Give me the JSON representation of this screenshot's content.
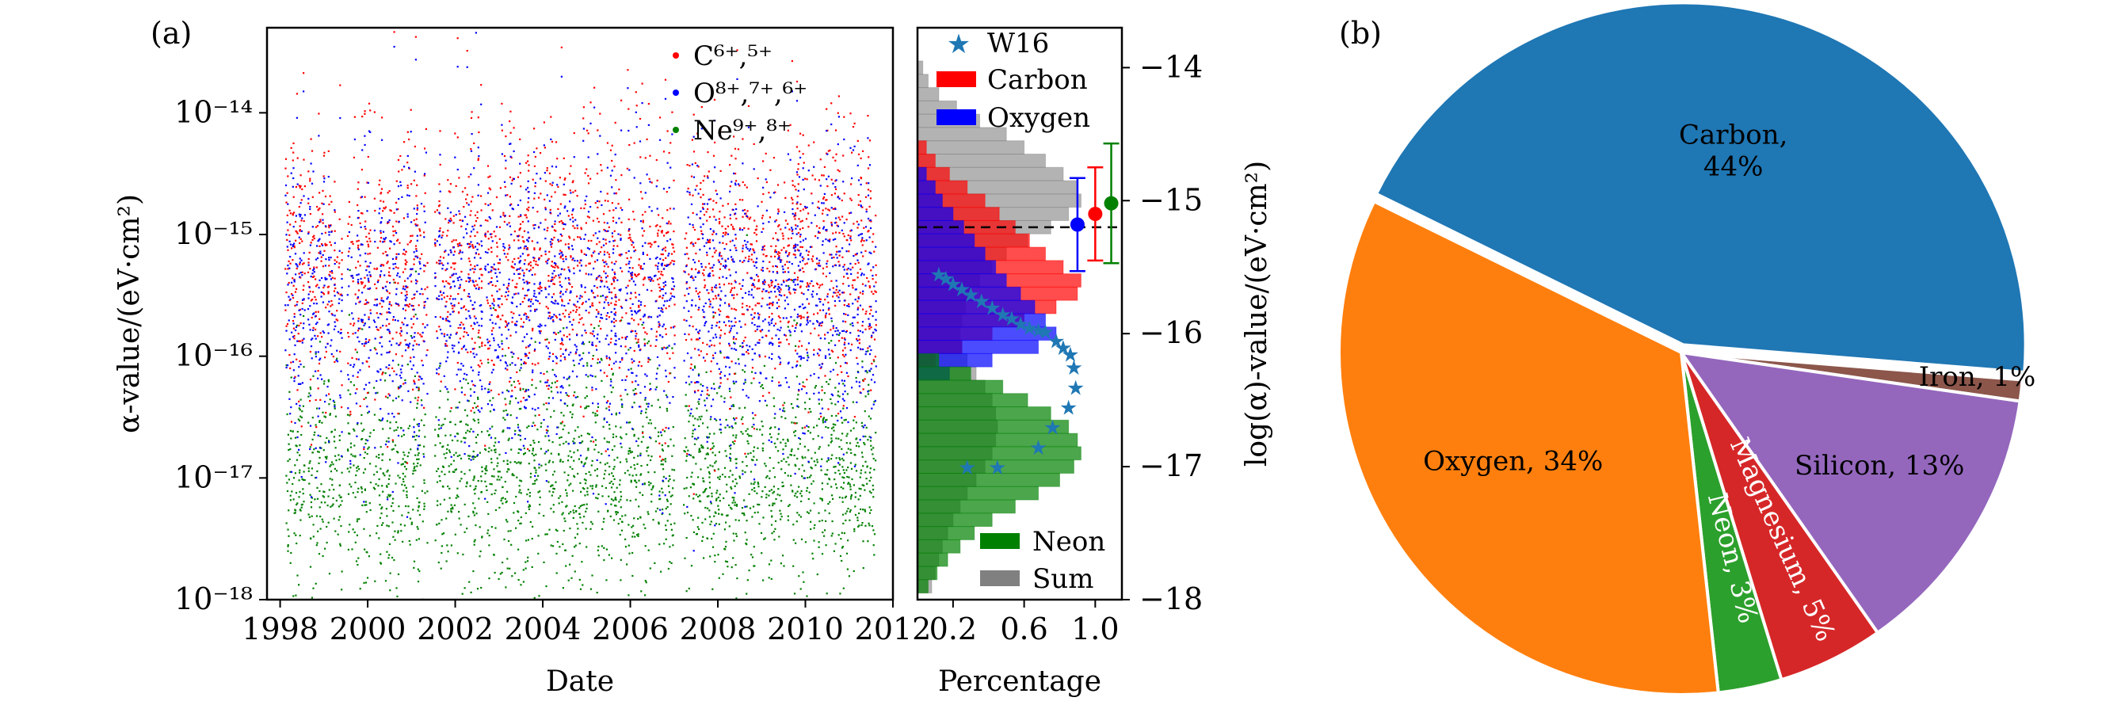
{
  "panel_a_label": "(a)",
  "panel_b_label": "(b)",
  "chart_data": [
    {
      "type": "scatter",
      "panel": "(a) left",
      "xlabel": "Date",
      "ylabel": "α-value/(eV·cm²)",
      "xlim": [
        1997.7,
        2012.0
      ],
      "ylim": [
        1e-18,
        5e-14
      ],
      "yscale": "log",
      "x_ticks": [
        "1998",
        "2000",
        "2002",
        "2004",
        "2006",
        "2008",
        "2010",
        "2012"
      ],
      "x_tick_values": [
        1998,
        2000,
        2002,
        2004,
        2006,
        2008,
        2010,
        2012
      ],
      "y_ticks": [
        "10⁻¹⁸",
        "10⁻¹⁷",
        "10⁻¹⁶",
        "10⁻¹⁵",
        "10⁻¹⁴"
      ],
      "y_tick_values": [
        1e-18,
        1e-17,
        1e-16,
        1e-15,
        1e-14
      ],
      "legend_position": "top-right",
      "x_range": [
        1998.1,
        2011.6
      ],
      "gaps": [
        {
          "start": 1998.55,
          "end": 1998.62
        },
        {
          "start": 1999.4,
          "end": 1999.52
        },
        {
          "start": 2000.05,
          "end": 2000.12
        },
        {
          "start": 2001.35,
          "end": 2001.52
        },
        {
          "start": 2002.6,
          "end": 2002.66
        },
        {
          "start": 2003.95,
          "end": 2004.0
        },
        {
          "start": 2005.8,
          "end": 2005.86
        },
        {
          "start": 2007.0,
          "end": 2007.2
        }
      ],
      "series": [
        {
          "name": "C⁶⁺,⁵⁺",
          "color": "#ff0000",
          "log_center": -15.3,
          "log_spread": 0.55
        },
        {
          "name": "O⁸⁺,⁷⁺,⁶⁺",
          "color": "#0000ff",
          "log_center": -15.6,
          "log_spread": 0.6
        },
        {
          "name": "Ne⁹⁺,⁸⁺",
          "color": "#008000",
          "log_center": -17.0,
          "log_spread": 0.45
        }
      ]
    },
    {
      "type": "bar",
      "orientation": "horizontal",
      "panel": "(a) right",
      "xlabel": "Percentage",
      "ylabel": "log(α)-value/(eV·cm²)",
      "xlim": [
        0.0,
        1.15
      ],
      "ylim": [
        -18.0,
        -13.7
      ],
      "x_ticks": [
        "0.2",
        "0.6",
        "1.0"
      ],
      "x_tick_values": [
        0.2,
        0.6,
        1.0
      ],
      "y_ticks": [
        "−18",
        "−17",
        "−16",
        "−15",
        "−14"
      ],
      "y_tick_values": [
        -18,
        -17,
        -16,
        -15,
        -14
      ],
      "reference_line_y": -15.2,
      "bin_width": 0.1,
      "histograms": [
        {
          "name": "Sum",
          "color": "#808080",
          "alpha": 0.6,
          "bins_center": [
            -14.0,
            -14.1,
            -14.2,
            -14.3,
            -14.4,
            -14.5,
            -14.6,
            -14.7,
            -14.8,
            -14.9,
            -15.0,
            -15.1,
            -15.2,
            -15.3,
            -15.4,
            -15.5,
            -15.6,
            -15.7,
            -15.8,
            -15.9,
            -16.0,
            -16.1,
            -16.2,
            -16.3,
            -16.4,
            -16.5,
            -16.6,
            -16.7,
            -16.8,
            -16.9,
            -17.0,
            -17.1,
            -17.2,
            -17.3,
            -17.4,
            -17.5,
            -17.6,
            -17.7,
            -17.8,
            -17.9
          ],
          "values": [
            0.03,
            0.06,
            0.12,
            0.22,
            0.35,
            0.5,
            0.6,
            0.72,
            0.82,
            0.9,
            0.92,
            0.85,
            0.75,
            0.62,
            0.5,
            0.42,
            0.35,
            0.3,
            0.27,
            0.25,
            0.24,
            0.25,
            0.28,
            0.33,
            0.38,
            0.42,
            0.44,
            0.45,
            0.44,
            0.42,
            0.38,
            0.33,
            0.28,
            0.24,
            0.2,
            0.17,
            0.14,
            0.12,
            0.1,
            0.08
          ]
        },
        {
          "name": "Carbon",
          "color": "#ff0000",
          "alpha": 0.7,
          "bins_center": [
            -14.6,
            -14.7,
            -14.8,
            -14.9,
            -15.0,
            -15.1,
            -15.2,
            -15.3,
            -15.4,
            -15.5,
            -15.6,
            -15.7,
            -15.8,
            -15.9,
            -16.0,
            -16.1,
            -16.2
          ],
          "values": [
            0.05,
            0.1,
            0.18,
            0.28,
            0.38,
            0.46,
            0.55,
            0.63,
            0.72,
            0.82,
            0.92,
            0.9,
            0.78,
            0.6,
            0.42,
            0.25,
            0.1
          ]
        },
        {
          "name": "Oxygen",
          "color": "#0000ff",
          "alpha": 0.7,
          "bins_center": [
            -14.8,
            -14.9,
            -15.0,
            -15.1,
            -15.2,
            -15.3,
            -15.4,
            -15.5,
            -15.6,
            -15.7,
            -15.8,
            -15.9,
            -16.0,
            -16.1,
            -16.2,
            -16.3
          ],
          "values": [
            0.05,
            0.1,
            0.14,
            0.2,
            0.26,
            0.32,
            0.38,
            0.44,
            0.5,
            0.58,
            0.66,
            0.72,
            0.78,
            0.68,
            0.42,
            0.18
          ]
        },
        {
          "name": "Neon",
          "color": "#008000",
          "alpha": 0.7,
          "bins_center": [
            -16.2,
            -16.3,
            -16.4,
            -16.5,
            -16.6,
            -16.7,
            -16.8,
            -16.9,
            -17.0,
            -17.1,
            -17.2,
            -17.3,
            -17.4,
            -17.5,
            -17.6,
            -17.7,
            -17.8,
            -17.9
          ],
          "values": [
            0.12,
            0.3,
            0.48,
            0.62,
            0.75,
            0.85,
            0.9,
            0.92,
            0.88,
            0.8,
            0.68,
            0.55,
            0.42,
            0.32,
            0.24,
            0.17,
            0.11,
            0.06
          ]
        }
      ],
      "w16": {
        "name": "W16",
        "color": "#1f77b4",
        "x": [
          0.12,
          0.16,
          0.2,
          0.25,
          0.3,
          0.36,
          0.42,
          0.48,
          0.53,
          0.58,
          0.63,
          0.68,
          0.72,
          0.78,
          0.82,
          0.86,
          0.88,
          0.89,
          0.85,
          0.76,
          0.68,
          0.45,
          0.28
        ],
        "y": [
          -15.55,
          -15.58,
          -15.62,
          -15.66,
          -15.7,
          -15.75,
          -15.8,
          -15.85,
          -15.88,
          -15.92,
          -15.95,
          -15.97,
          -15.98,
          -16.05,
          -16.1,
          -16.15,
          -16.25,
          -16.4,
          -16.55,
          -16.7,
          -16.85,
          -17.0,
          -17.0
        ]
      },
      "error_bars": [
        {
          "color": "#0000ff",
          "x": 0.9,
          "y": -15.18,
          "yerr": 0.35
        },
        {
          "color": "#ff0000",
          "x": 1.0,
          "y": -15.1,
          "yerr": 0.35
        },
        {
          "color": "#008000",
          "x": 1.09,
          "y": -15.02,
          "yerr": 0.45
        }
      ]
    },
    {
      "type": "pie",
      "panel": "(b)",
      "slices": [
        {
          "label": "Carbon, 44%",
          "value": 44,
          "color": "#1f77b4"
        },
        {
          "label": "Iron, 1%",
          "value": 1,
          "color": "#8c564b"
        },
        {
          "label": "Silicon, 13%",
          "value": 13,
          "color": "#9467bd"
        },
        {
          "label": "Magnesium, 5%",
          "value": 5,
          "color": "#d62728"
        },
        {
          "label": "Neon, 3%",
          "value": 3,
          "color": "#2ca02c"
        },
        {
          "label": "Oxygen, 34%",
          "value": 34,
          "color": "#ff7f0e"
        }
      ]
    }
  ]
}
